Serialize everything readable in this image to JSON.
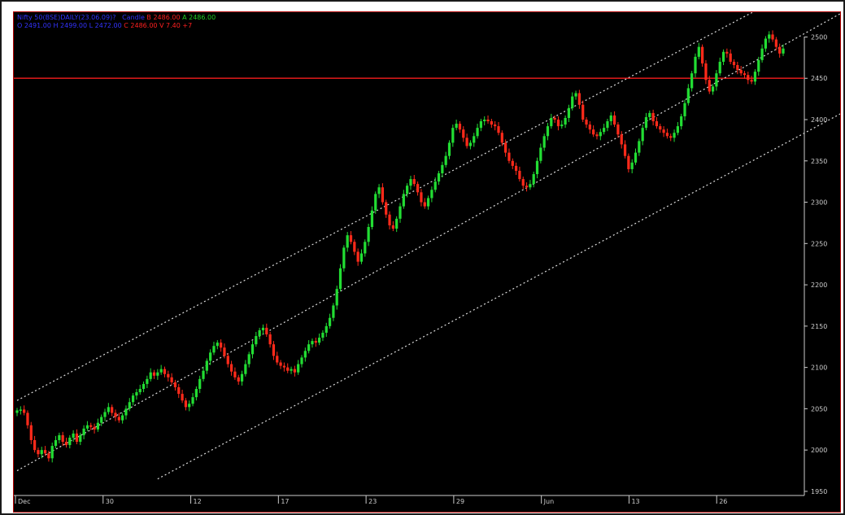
{
  "header": {
    "line1_symbol": "Nifty 50(BSE)DAILY(23.06.09)?",
    "line1_mode": "Candle",
    "line1_b": "B 2486.00",
    "line1_a": "A 2486.00",
    "line2_ohl": "O 2491.00 H 2499.00 L 2472.00",
    "line2_c": "C 2486.00 V 7.40 +7"
  },
  "colors": {
    "background": "#000000",
    "up_candle": "#22dd33",
    "down_candle": "#ff2a1a",
    "resistance_line": "#d01818",
    "channel_lines": "#dddddd",
    "axis": "#cccccc"
  },
  "chart_data": {
    "type": "candlestick",
    "ylim": [
      1945,
      2530
    ],
    "y_ticks": [
      "1950",
      "2000",
      "2050",
      "2100",
      "2150",
      "2200",
      "2250",
      "2300",
      "2350",
      "2400",
      "2450",
      "2500"
    ],
    "x_tick_labels": [
      "Dec",
      "30",
      "12",
      "17",
      "23",
      "29",
      "Jun",
      "13",
      "26"
    ],
    "horizontal_line": 2450,
    "channel_lines": [
      {
        "name": "upper",
        "from": [
          0,
          2060
        ],
        "to": [
          216,
          2545
        ]
      },
      {
        "name": "middle",
        "from": [
          0,
          1975
        ],
        "to": [
          235,
          2530
        ]
      },
      {
        "name": "lower",
        "from": [
          40,
          1965
        ],
        "to": [
          240,
          2420
        ]
      }
    ],
    "closes": [
      2048,
      2049,
      2045,
      2030,
      2012,
      2000,
      1995,
      2000,
      1996,
      1990,
      2005,
      2012,
      2018,
      2010,
      2006,
      2015,
      2020,
      2010,
      2018,
      2026,
      2030,
      2028,
      2025,
      2033,
      2040,
      2046,
      2052,
      2045,
      2040,
      2036,
      2042,
      2050,
      2058,
      2066,
      2070,
      2074,
      2080,
      2086,
      2094,
      2090,
      2094,
      2098,
      2092,
      2088,
      2082,
      2076,
      2068,
      2060,
      2052,
      2056,
      2064,
      2074,
      2086,
      2096,
      2108,
      2118,
      2126,
      2130,
      2124,
      2114,
      2104,
      2095,
      2088,
      2083,
      2092,
      2104,
      2116,
      2128,
      2138,
      2145,
      2148,
      2140,
      2128,
      2114,
      2106,
      2102,
      2100,
      2096,
      2098,
      2094,
      2104,
      2112,
      2120,
      2128,
      2132,
      2130,
      2136,
      2142,
      2150,
      2160,
      2175,
      2195,
      2220,
      2245,
      2260,
      2252,
      2240,
      2228,
      2238,
      2252,
      2270,
      2290,
      2310,
      2318,
      2300,
      2285,
      2272,
      2268,
      2280,
      2295,
      2310,
      2320,
      2328,
      2322,
      2312,
      2300,
      2295,
      2305,
      2315,
      2325,
      2335,
      2345,
      2356,
      2372,
      2390,
      2395,
      2388,
      2378,
      2368,
      2372,
      2380,
      2390,
      2398,
      2400,
      2398,
      2394,
      2392,
      2384,
      2372,
      2360,
      2350,
      2344,
      2338,
      2328,
      2320,
      2318,
      2322,
      2334,
      2350,
      2366,
      2380,
      2392,
      2402,
      2400,
      2392,
      2394,
      2402,
      2414,
      2428,
      2432,
      2418,
      2400,
      2394,
      2388,
      2382,
      2380,
      2385,
      2390,
      2398,
      2405,
      2394,
      2382,
      2370,
      2356,
      2340,
      2348,
      2360,
      2374,
      2390,
      2403,
      2408,
      2398,
      2392,
      2388,
      2384,
      2380,
      2378,
      2384,
      2392,
      2404,
      2420,
      2438,
      2456,
      2476,
      2488,
      2468,
      2448,
      2434,
      2440,
      2456,
      2470,
      2482,
      2480,
      2470,
      2466,
      2460,
      2456,
      2454,
      2448,
      2446,
      2458,
      2472,
      2486,
      2498,
      2503,
      2497,
      2488,
      2480,
      2486
    ]
  }
}
